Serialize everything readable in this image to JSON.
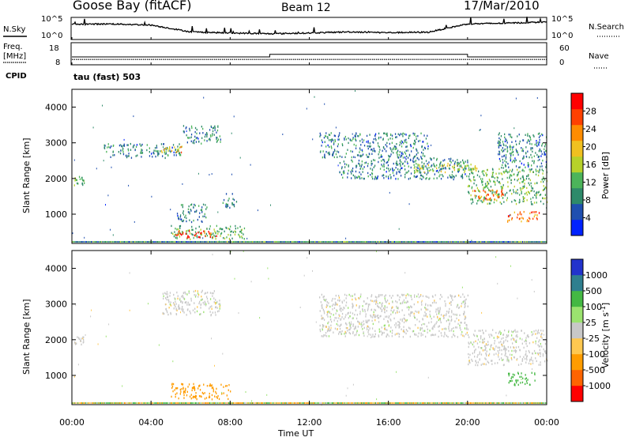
{
  "header": {
    "site": "Goose Bay (fitACF)",
    "beam": "Beam 12",
    "date": "17/Mar/2010"
  },
  "labels": {
    "nsky": "N.Sky",
    "nsearch": "N.Search",
    "freq_line1": "Freq.",
    "freq_line2": "[MHz]",
    "nave": "Nave",
    "cpid": "CPID",
    "cpid_value": "tau (fast) 503",
    "xlabel": "Time UT",
    "ylabel": "Slant Range [km]"
  },
  "top_strip": {
    "nsky_ticks": [
      "10^5",
      "10^0"
    ],
    "nsearch_ticks": [
      "10^5",
      "10^0"
    ],
    "freq_ticks": [
      "18",
      "8"
    ],
    "nave_ticks": [
      "60",
      "0"
    ]
  },
  "colors": {
    "power": [
      "#0022ff",
      "#1f4fb0",
      "#2e8a6a",
      "#4cb45a",
      "#b7d12a",
      "#f0c020",
      "#ff8c00",
      "#ff4000",
      "#ff0000"
    ],
    "velocity": [
      "#ff0000",
      "#ff6400",
      "#ff9c00",
      "#ffc850",
      "#c8c8c8",
      "#9be36f",
      "#44b843",
      "#2f7f8f",
      "#2233cc"
    ]
  },
  "chart_data": [
    {
      "type": "line",
      "title": "N.Sky / N.Search",
      "x": [
        "00:00",
        "02:00",
        "04:00",
        "06:00",
        "08:00",
        "10:00",
        "12:00",
        "14:00",
        "16:00",
        "18:00",
        "20:00",
        "22:00",
        "24:00"
      ],
      "series": [
        {
          "name": "N.Sky",
          "values": [
            3.6,
            3.7,
            3.4,
            1.6,
            1.3,
            1.1,
            1.3,
            1.6,
            1.4,
            1.5,
            3.7,
            3.9,
            4.2
          ]
        }
      ],
      "yscale": "log",
      "ylim": [
        "10^0",
        "10^5"
      ]
    },
    {
      "type": "line",
      "title": "Freq. / Nave",
      "x": [
        "00:00",
        "04:00",
        "08:00",
        "10:00",
        "12:00",
        "16:00",
        "20:00",
        "24:00"
      ],
      "series": [
        {
          "name": "Freq.",
          "values": [
            10,
            10,
            10,
            10,
            10,
            10,
            10,
            10
          ]
        },
        {
          "name": "Nave",
          "values": [
            20,
            20,
            20,
            28,
            28,
            28,
            20,
            20
          ]
        }
      ],
      "ylim_freq": [
        8,
        18
      ],
      "ylim_nave": [
        0,
        60
      ]
    },
    {
      "type": "heatmap",
      "title": "",
      "xlabel": "",
      "ylabel": "Slant Range [km]",
      "colorbar_label": "Power [dB]",
      "colorbar_ticks": [
        "4",
        "8",
        "12",
        "16",
        "20",
        "24",
        "28"
      ],
      "x_ticks": [
        "00:00",
        "04:00",
        "08:00",
        "12:00",
        "16:00",
        "20:00",
        "00:00"
      ],
      "y_ticks": [
        "1000",
        "2000",
        "3000",
        "4000"
      ],
      "xlim_hours": [
        0,
        24
      ],
      "ylim_km": [
        180,
        4500
      ],
      "regions": [
        {
          "t0": 0.0,
          "t1": 0.6,
          "r0": 1800,
          "r1": 2100,
          "value": 12
        },
        {
          "t0": 1.6,
          "t1": 5.5,
          "r0": 2600,
          "r1": 3000,
          "value": 8
        },
        {
          "t0": 4.5,
          "t1": 5.6,
          "r0": 2750,
          "r1": 2950,
          "value": 20
        },
        {
          "t0": 5.6,
          "t1": 7.5,
          "r0": 3000,
          "r1": 3500,
          "value": 8
        },
        {
          "t0": 5.0,
          "t1": 8.8,
          "r0": 320,
          "r1": 700,
          "value": 12
        },
        {
          "t0": 5.2,
          "t1": 7.4,
          "r0": 360,
          "r1": 560,
          "value": 28
        },
        {
          "t0": 5.3,
          "t1": 6.8,
          "r0": 800,
          "r1": 1300,
          "value": 8
        },
        {
          "t0": 7.6,
          "t1": 8.3,
          "r0": 1200,
          "r1": 1600,
          "value": 8
        },
        {
          "t0": 12.5,
          "t1": 18.0,
          "r0": 2600,
          "r1": 3300,
          "value": 8
        },
        {
          "t0": 13.5,
          "t1": 20.0,
          "r0": 2000,
          "r1": 2600,
          "value": 8
        },
        {
          "t0": 17.0,
          "t1": 20.5,
          "r0": 2200,
          "r1": 2450,
          "value": 16
        },
        {
          "t0": 20.0,
          "t1": 24.0,
          "r0": 1300,
          "r1": 2300,
          "value": 12
        },
        {
          "t0": 20.2,
          "t1": 21.8,
          "r0": 1400,
          "r1": 1700,
          "value": 24
        },
        {
          "t0": 22.0,
          "t1": 23.6,
          "r0": 800,
          "r1": 1100,
          "value": 24
        },
        {
          "t0": 21.5,
          "t1": 24.0,
          "r0": 2300,
          "r1": 3300,
          "value": 8
        }
      ]
    },
    {
      "type": "heatmap",
      "title": "",
      "xlabel": "Time UT",
      "ylabel": "Slant Range [km]",
      "colorbar_label": "Velocity [m s^-1]",
      "colorbar_ticks": [
        "1000",
        "500",
        "100",
        "25",
        "-25",
        "-100",
        "-500",
        "-1000"
      ],
      "x_ticks": [
        "00:00",
        "04:00",
        "08:00",
        "12:00",
        "16:00",
        "20:00",
        "00:00"
      ],
      "y_ticks": [
        "1000",
        "2000",
        "3000",
        "4000"
      ],
      "xlim_hours": [
        0,
        24
      ],
      "ylim_km": [
        180,
        4500
      ],
      "regions": [
        {
          "t0": 0.0,
          "t1": 0.6,
          "r0": 1800,
          "r1": 2100,
          "value": 0
        },
        {
          "t0": 4.5,
          "t1": 7.5,
          "r0": 2700,
          "r1": 3400,
          "value": 0
        },
        {
          "t0": 5.0,
          "t1": 8.0,
          "r0": 350,
          "r1": 800,
          "value": -200
        },
        {
          "t0": 12.5,
          "t1": 20.0,
          "r0": 2100,
          "r1": 3300,
          "value": 0
        },
        {
          "t0": 20.0,
          "t1": 24.0,
          "r0": 1300,
          "r1": 2300,
          "value": 0
        },
        {
          "t0": 22.0,
          "t1": 23.5,
          "r0": 750,
          "r1": 1100,
          "value": 150
        }
      ]
    }
  ]
}
